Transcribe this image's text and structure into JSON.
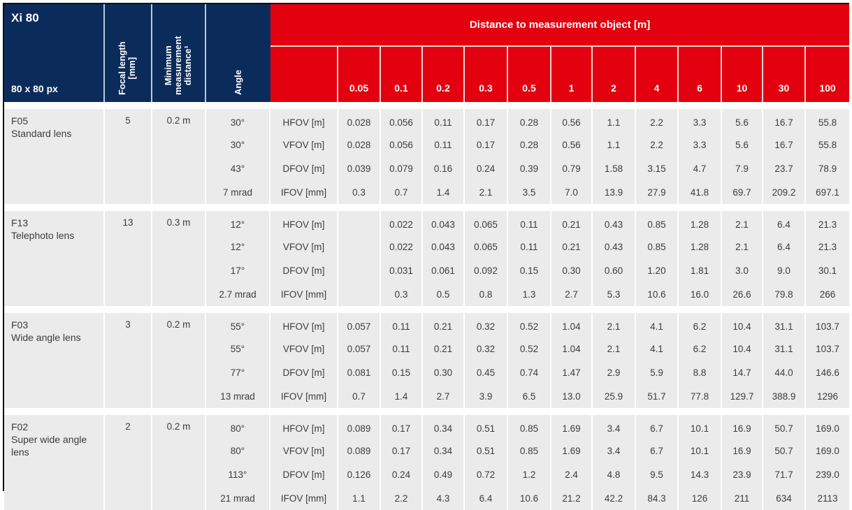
{
  "header": {
    "model": "Xi 80",
    "resolution": "80 x 80 px",
    "focal_length_line1": "Focal length",
    "focal_length_line2": "[mm]",
    "min_dist_line1": "Minimum",
    "min_dist_line2": "measurement",
    "min_dist_line3": "distance¹",
    "angle": "Angle",
    "distance_title": "Distance to measurement object [m]",
    "distances": [
      "0.05",
      "0.1",
      "0.2",
      "0.3",
      "0.5",
      "1",
      "2",
      "4",
      "6",
      "10",
      "30",
      "100"
    ]
  },
  "colors": {
    "navy": "#0b2b5a",
    "red": "#e3000f",
    "cell_bg": "#ebebeb"
  },
  "lenses": [
    {
      "code": "F05",
      "name": "Standard lens",
      "focal_length": "5",
      "min_distance": "0.2 m",
      "rows": [
        {
          "angle": "30°",
          "metric": "HFOV [m]",
          "values": [
            "0.028",
            "0.056",
            "0.11",
            "0.17",
            "0.28",
            "0.56",
            "1.1",
            "2.2",
            "3.3",
            "5.6",
            "16.7",
            "55.8"
          ]
        },
        {
          "angle": "30°",
          "metric": "VFOV [m]",
          "values": [
            "0.028",
            "0.056",
            "0.11",
            "0.17",
            "0.28",
            "0.56",
            "1.1",
            "2.2",
            "3.3",
            "5.6",
            "16.7",
            "55.8"
          ]
        },
        {
          "angle": "43°",
          "metric": "DFOV [m]",
          "values": [
            "0.039",
            "0.079",
            "0.16",
            "0.24",
            "0.39",
            "0.79",
            "1.58",
            "3.15",
            "4.7",
            "7.9",
            "23.7",
            "78.9"
          ]
        },
        {
          "angle": "7 mrad",
          "metric": "IFOV [mm]",
          "values": [
            "0.3",
            "0.7",
            "1.4",
            "2.1",
            "3.5",
            "7.0",
            "13.9",
            "27.9",
            "41.8",
            "69.7",
            "209.2",
            "697.1"
          ]
        }
      ]
    },
    {
      "code": "F13",
      "name": "Telephoto lens",
      "focal_length": "13",
      "min_distance": "0.3 m",
      "rows": [
        {
          "angle": "12°",
          "metric": "HFOV [m]",
          "values": [
            "",
            "0.022",
            "0.043",
            "0.065",
            "0.11",
            "0.21",
            "0.43",
            "0.85",
            "1.28",
            "2.1",
            "6.4",
            "21.3"
          ]
        },
        {
          "angle": "12°",
          "metric": "VFOV [m]",
          "values": [
            "",
            "0.022",
            "0.043",
            "0.065",
            "0.11",
            "0.21",
            "0.43",
            "0.85",
            "1.28",
            "2.1",
            "6.4",
            "21.3"
          ]
        },
        {
          "angle": "17°",
          "metric": "DFOV [m]",
          "values": [
            "",
            "0.031",
            "0.061",
            "0.092",
            "0.15",
            "0.30",
            "0.60",
            "1.20",
            "1.81",
            "3.0",
            "9.0",
            "30.1"
          ]
        },
        {
          "angle": "2.7 mrad",
          "metric": "IFOV [mm]",
          "values": [
            "",
            "0.3",
            "0.5",
            "0.8",
            "1.3",
            "2.7",
            "5.3",
            "10.6",
            "16.0",
            "26.6",
            "79.8",
            "266"
          ]
        }
      ]
    },
    {
      "code": "F03",
      "name": "Wide angle lens",
      "focal_length": "3",
      "min_distance": "0.2 m",
      "rows": [
        {
          "angle": "55°",
          "metric": "HFOV [m]",
          "values": [
            "0.057",
            "0.11",
            "0.21",
            "0.32",
            "0.52",
            "1.04",
            "2.1",
            "4.1",
            "6.2",
            "10.4",
            "31.1",
            "103.7"
          ]
        },
        {
          "angle": "55°",
          "metric": "VFOV [m]",
          "values": [
            "0.057",
            "0.11",
            "0.21",
            "0.32",
            "0.52",
            "1.04",
            "2.1",
            "4.1",
            "6.2",
            "10.4",
            "31.1",
            "103.7"
          ]
        },
        {
          "angle": "77°",
          "metric": "DFOV [m]",
          "values": [
            "0.081",
            "0.15",
            "0.30",
            "0.45",
            "0.74",
            "1.47",
            "2.9",
            "5.9",
            "8.8",
            "14.7",
            "44.0",
            "146.6"
          ]
        },
        {
          "angle": "13 mrad",
          "metric": "IFOV [mm]",
          "values": [
            "0.7",
            "1.4",
            "2.7",
            "3.9",
            "6.5",
            "13.0",
            "25.9",
            "51.7",
            "77.8",
            "129.7",
            "388.9",
            "1296"
          ]
        }
      ]
    },
    {
      "code": "F02",
      "name": "Super wide angle lens",
      "focal_length": "2",
      "min_distance": "0.2 m",
      "rows": [
        {
          "angle": "80°",
          "metric": "HFOV [m]",
          "values": [
            "0.089",
            "0.17",
            "0.34",
            "0.51",
            "0.85",
            "1.69",
            "3.4",
            "6.7",
            "10.1",
            "16.9",
            "50.7",
            "169.0"
          ]
        },
        {
          "angle": "80°",
          "metric": "VFOV [m]",
          "values": [
            "0.089",
            "0.17",
            "0.34",
            "0.51",
            "0.85",
            "1.69",
            "3.4",
            "6.7",
            "10.1",
            "16.9",
            "50.7",
            "169.0"
          ]
        },
        {
          "angle": "113°",
          "metric": "DFOV [m]",
          "values": [
            "0.126",
            "0.24",
            "0.49",
            "0.72",
            "1.2",
            "2.4",
            "4.8",
            "9.5",
            "14.3",
            "23.9",
            "71.7",
            "239.0"
          ]
        },
        {
          "angle": "21 mrad",
          "metric": "IFOV [mm]",
          "values": [
            "1.1",
            "2.2",
            "4.3",
            "6.4",
            "10.6",
            "21.2",
            "42.2",
            "84.3",
            "126",
            "211",
            "634",
            "2113"
          ]
        }
      ]
    }
  ]
}
